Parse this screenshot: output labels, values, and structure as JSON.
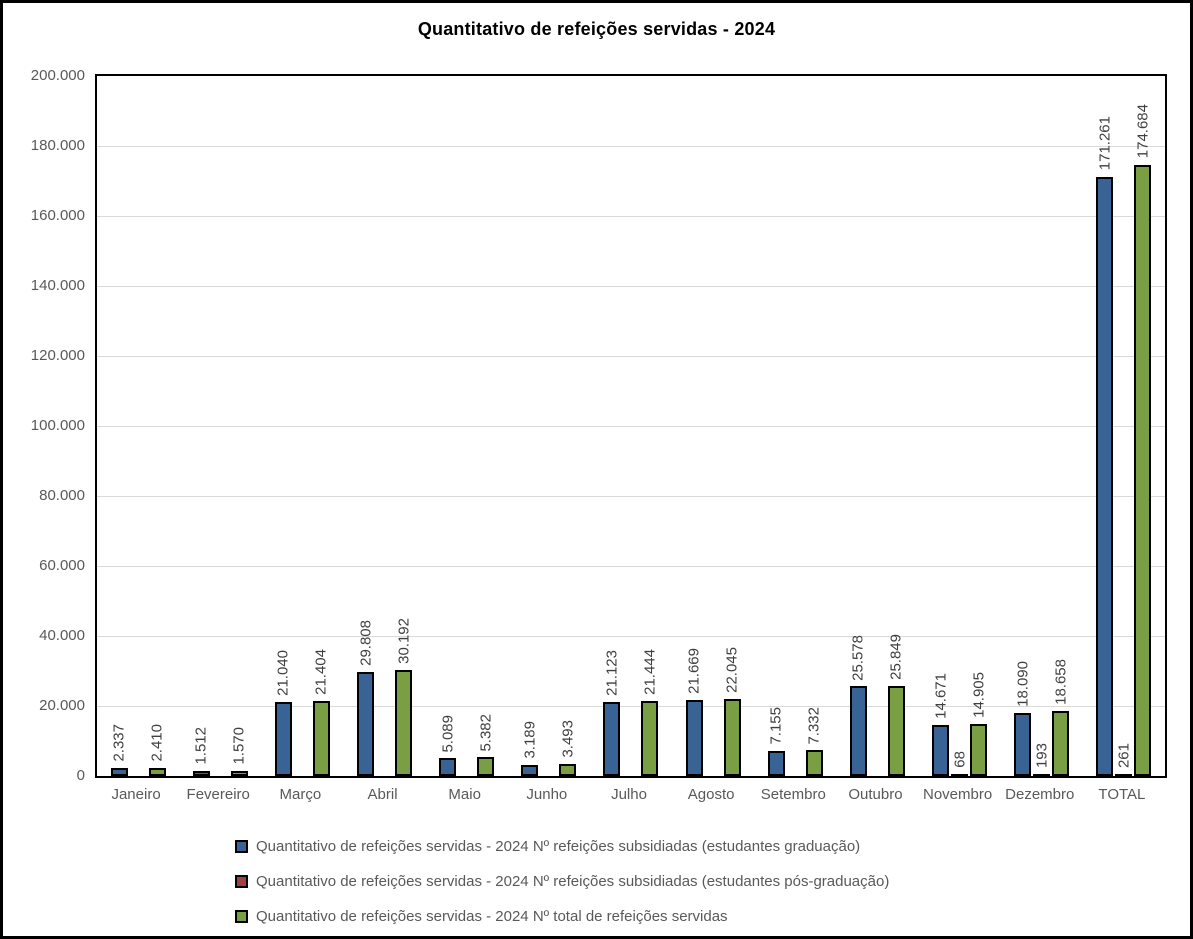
{
  "title": "Quantitativo de refeições servidas - 2024",
  "chart_data": {
    "type": "bar",
    "title": "Quantitativo de refeições servidas - 2024",
    "categories": [
      "Janeiro",
      "Fevereiro",
      "Março",
      "Abril",
      "Maio",
      "Junho",
      "Julho",
      "Agosto",
      "Setembro",
      "Outubro",
      "Novembro",
      "Dezembro",
      "TOTAL"
    ],
    "series": [
      {
        "name": "Quantitativo de refeições servidas - 2024 Nº refeições subsidiadas (estudantes graduação)",
        "color": "#386394",
        "values": [
          2337,
          1512,
          21040,
          29808,
          5089,
          3189,
          21123,
          21669,
          7155,
          25578,
          14671,
          18090,
          171261
        ],
        "labels": [
          "2.337",
          "1.512",
          "21.040",
          "29.808",
          "5.089",
          "3.189",
          "21.123",
          "21.669",
          "7.155",
          "25.578",
          "14.671",
          "18.090",
          "171.261"
        ]
      },
      {
        "name": "Quantitativo de refeições servidas - 2024 Nº refeições subsidiadas (estudantes pós-graduação)",
        "color": "#9E4141",
        "values": [
          0,
          0,
          0,
          0,
          0,
          0,
          0,
          0,
          0,
          0,
          68,
          193,
          261
        ],
        "labels": [
          "",
          "",
          "",
          "",
          "",
          "",
          "",
          "",
          "",
          "",
          "68",
          "193",
          "261"
        ]
      },
      {
        "name": "Quantitativo de refeições servidas - 2024 Nº total de refeições servidas",
        "color": "#7A9E44",
        "values": [
          2410,
          1570,
          21404,
          30192,
          5382,
          3493,
          21444,
          22045,
          7332,
          25849,
          14905,
          18658,
          174684
        ],
        "labels": [
          "2.410",
          "1.570",
          "21.404",
          "30.192",
          "5.382",
          "3.493",
          "21.444",
          "22.045",
          "7.332",
          "25.849",
          "14.905",
          "18.658",
          "174.684"
        ]
      }
    ],
    "y_axis": {
      "min": 0,
      "max": 200000,
      "step": 20000,
      "tick_labels": [
        "0",
        "20.000",
        "40.000",
        "60.000",
        "80.000",
        "100.000",
        "120.000",
        "140.000",
        "160.000",
        "180.000",
        "200.000"
      ]
    },
    "legend_position": "bottom",
    "grid": true
  },
  "colors": {
    "grid_line": "#D9D9D9",
    "axis_text": "#595959",
    "data_label_text": "#3F3F3F",
    "bar_border": "#000000",
    "frame_border": "#000000"
  }
}
